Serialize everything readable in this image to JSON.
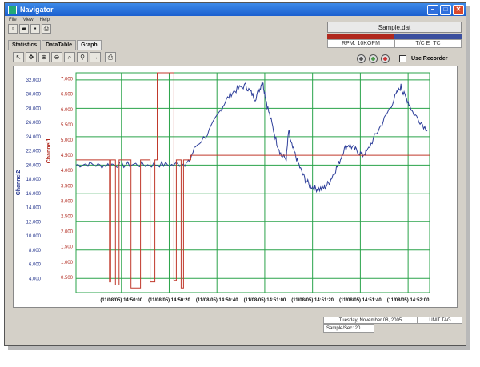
{
  "window": {
    "title": "Navigator"
  },
  "menu": [
    "File",
    "View",
    "Help"
  ],
  "toolbar_icons": [
    "new-file-icon",
    "open-folder-icon",
    "save-icon",
    "print-icon"
  ],
  "info": {
    "filename": "Sample.dat",
    "left_value": "RPM: 10KOPM",
    "right_value": "T/C E_TC",
    "left_color": "#b0281d",
    "right_color": "#3b4f9e"
  },
  "tabs": [
    "Statistics",
    "DataTable",
    "Graph"
  ],
  "graph_tools": [
    "pointer-icon",
    "pan-icon",
    "zoom-in-icon",
    "zoom-out-icon",
    "zoom-region-icon",
    "zoom-fit-icon",
    "zoom-x-icon",
    "print-graph-icon"
  ],
  "recorder": {
    "label": "Use Recorder",
    "checked": false
  },
  "status": {
    "date": "Tuesday, November 08, 2005",
    "tag": "UNIT TAG",
    "rate": "Sample/Sec: 20"
  },
  "chart_data": {
    "type": "line",
    "title": "",
    "y1label": "Channel2",
    "y2label": "Channel1",
    "y1ticks": [
      "32.000",
      "30.000",
      "28.000",
      "26.000",
      "24.000",
      "22.000",
      "20.000",
      "18.000",
      "16.000",
      "14.000",
      "12.000",
      "10.000",
      "8.000",
      "6.000",
      "4.000"
    ],
    "y2ticks": [
      "7.000",
      "6.500",
      "6.000",
      "5.500",
      "5.000",
      "4.500",
      "4.000",
      "3.500",
      "3.000",
      "2.500",
      "2.000",
      "1.500",
      "1.000",
      "0.500"
    ],
    "xticks": [
      "(11/08/05) 14:50:00",
      "(11/08/05) 14:50:20",
      "(11/08/05) 14:50:40",
      "(11/08/05) 14:51:00",
      "(11/08/05) 14:51:20",
      "(11/08/05) 14:51:40",
      "(11/08/05) 14:52:00"
    ],
    "y1lim": [
      2,
      33
    ],
    "y2lim": [
      0,
      7.2
    ],
    "series": [
      {
        "name": "Channel2",
        "color": "#2e3f9a",
        "points": [
          [
            0,
            20.0
          ],
          [
            5,
            20.2
          ],
          [
            10,
            19.9
          ],
          [
            15,
            20.1
          ],
          [
            20,
            20.0
          ],
          [
            25,
            20.1
          ],
          [
            30,
            20.0
          ],
          [
            35,
            20.1
          ],
          [
            40,
            20.0
          ],
          [
            45,
            20.2
          ],
          [
            47,
            20.3
          ],
          [
            50,
            22.6
          ],
          [
            55,
            24.4
          ],
          [
            60,
            27.3
          ],
          [
            62,
            28.7
          ],
          [
            65,
            30.1
          ],
          [
            68,
            30.8
          ],
          [
            71,
            31.2
          ],
          [
            73,
            30.3
          ],
          [
            75,
            29.4
          ],
          [
            77,
            30.8
          ],
          [
            78,
            31.9
          ],
          [
            79,
            30.2
          ],
          [
            80,
            28.4
          ],
          [
            82,
            25.8
          ],
          [
            84,
            23.2
          ],
          [
            86,
            21.3
          ],
          [
            88,
            20.9
          ],
          [
            89,
            24.8
          ],
          [
            90,
            23.0
          ],
          [
            92,
            21.2
          ],
          [
            94,
            19.4
          ],
          [
            96,
            17.9
          ],
          [
            98,
            17.1
          ],
          [
            100,
            16.7
          ],
          [
            102,
            16.6
          ],
          [
            104,
            16.8
          ],
          [
            106,
            17.6
          ],
          [
            108,
            18.9
          ],
          [
            110,
            20.2
          ],
          [
            112,
            22.1
          ],
          [
            114,
            22.9
          ],
          [
            116,
            22.4
          ],
          [
            118,
            21.9
          ],
          [
            120,
            21.4
          ],
          [
            122,
            22.0
          ],
          [
            125,
            24.0
          ],
          [
            128,
            25.8
          ],
          [
            131,
            27.8
          ],
          [
            134,
            29.9
          ],
          [
            136,
            31.1
          ],
          [
            137,
            30.1
          ],
          [
            139,
            29.0
          ],
          [
            141,
            27.4
          ],
          [
            144,
            26.2
          ],
          [
            147,
            24.9
          ]
        ]
      },
      {
        "name": "Channel1",
        "color": "#c0392b",
        "points": [
          [
            0,
            4.35
          ],
          [
            14,
            4.35
          ],
          [
            14,
            0.35
          ],
          [
            14.5,
            0.35
          ],
          [
            14.5,
            4.35
          ],
          [
            16.5,
            4.35
          ],
          [
            16.5,
            0.25
          ],
          [
            18,
            0.25
          ],
          [
            18,
            4.35
          ],
          [
            23,
            4.35
          ],
          [
            23,
            0.15
          ],
          [
            27,
            0.15
          ],
          [
            27,
            4.35
          ],
          [
            31,
            4.35
          ],
          [
            31,
            0.35
          ],
          [
            33,
            0.35
          ],
          [
            33,
            4.35
          ],
          [
            34,
            4.35
          ],
          [
            34,
            7.2
          ],
          [
            41,
            7.2
          ],
          [
            41,
            0.4
          ],
          [
            42,
            0.4
          ],
          [
            42,
            4.35
          ],
          [
            44,
            4.35
          ],
          [
            44,
            0.15
          ],
          [
            45,
            0.15
          ],
          [
            45,
            4.35
          ],
          [
            48,
            4.35
          ],
          [
            48,
            4.5
          ],
          [
            148,
            4.5
          ]
        ]
      }
    ]
  }
}
